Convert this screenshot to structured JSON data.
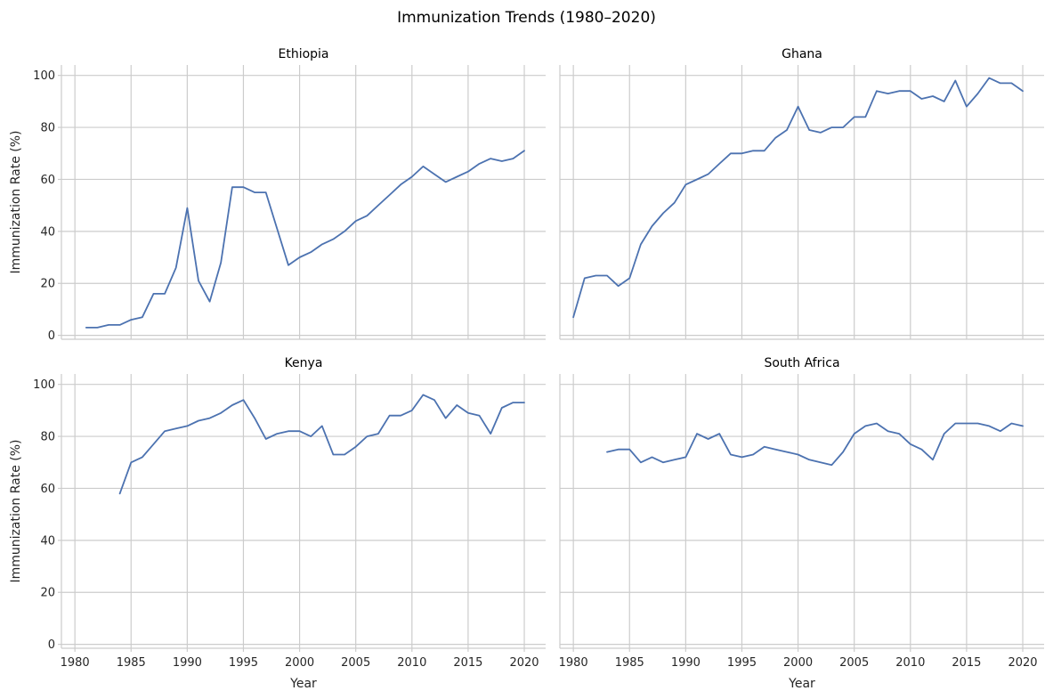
{
  "chart_data": {
    "type": "line",
    "title": "Immunization Trends (1980–2020)",
    "xlabel": "Year",
    "ylabel": "Immunization Rate (%)",
    "xlim": [
      1978.8,
      2021.9
    ],
    "ylim": [
      -1.5,
      104
    ],
    "x_ticks": [
      1980,
      1985,
      1990,
      1995,
      2000,
      2005,
      2010,
      2015,
      2020
    ],
    "y_ticks": [
      0,
      20,
      40,
      60,
      80,
      100
    ],
    "grid": true,
    "line_color": "#4c72b0",
    "grid_color": "#cccccc",
    "panels": [
      {
        "title": "Ethiopia",
        "x": [
          1981,
          1982,
          1983,
          1984,
          1985,
          1986,
          1987,
          1988,
          1989,
          1990,
          1991,
          1992,
          1993,
          1994,
          1995,
          1996,
          1997,
          1998,
          1999,
          2000,
          2001,
          2002,
          2003,
          2004,
          2005,
          2006,
          2007,
          2008,
          2009,
          2010,
          2011,
          2012,
          2013,
          2014,
          2015,
          2016,
          2017,
          2018,
          2019,
          2020
        ],
        "y": [
          3,
          3,
          4,
          4,
          6,
          7,
          16,
          16,
          26,
          49,
          21,
          13,
          28,
          57,
          57,
          55,
          55,
          41,
          27,
          30,
          32,
          35,
          37,
          40,
          44,
          46,
          50,
          54,
          58,
          61,
          65,
          62,
          59,
          61,
          63,
          66,
          68,
          67,
          68,
          71
        ]
      },
      {
        "title": "Ghana",
        "x": [
          1980,
          1981,
          1982,
          1983,
          1984,
          1985,
          1986,
          1987,
          1988,
          1989,
          1990,
          1991,
          1992,
          1993,
          1994,
          1995,
          1996,
          1997,
          1998,
          1999,
          2000,
          2001,
          2002,
          2003,
          2004,
          2005,
          2006,
          2007,
          2008,
          2009,
          2010,
          2011,
          2012,
          2013,
          2014,
          2015,
          2016,
          2017,
          2018,
          2019,
          2020
        ],
        "y": [
          7,
          22,
          23,
          23,
          19,
          22,
          35,
          42,
          47,
          51,
          58,
          60,
          62,
          66,
          70,
          70,
          71,
          71,
          76,
          79,
          88,
          79,
          78,
          80,
          80,
          84,
          84,
          94,
          93,
          94,
          94,
          91,
          92,
          90,
          98,
          88,
          93,
          99,
          97,
          97,
          94
        ]
      },
      {
        "title": "Kenya",
        "x": [
          1984,
          1985,
          1986,
          1987,
          1988,
          1989,
          1990,
          1991,
          1992,
          1993,
          1994,
          1995,
          1996,
          1997,
          1998,
          1999,
          2000,
          2001,
          2002,
          2003,
          2004,
          2005,
          2006,
          2007,
          2008,
          2009,
          2010,
          2011,
          2012,
          2013,
          2014,
          2015,
          2016,
          2017,
          2018,
          2019,
          2020
        ],
        "y": [
          58,
          70,
          72,
          77,
          82,
          83,
          84,
          86,
          87,
          89,
          92,
          94,
          87,
          79,
          81,
          82,
          82,
          80,
          84,
          73,
          73,
          76,
          80,
          81,
          88,
          88,
          90,
          96,
          94,
          87,
          92,
          89,
          88,
          81,
          91,
          93,
          93
        ]
      },
      {
        "title": "South Africa",
        "x": [
          1983,
          1984,
          1985,
          1986,
          1987,
          1988,
          1989,
          1990,
          1991,
          1992,
          1993,
          1994,
          1995,
          1996,
          1997,
          1998,
          1999,
          2000,
          2001,
          2002,
          2003,
          2004,
          2005,
          2006,
          2007,
          2008,
          2009,
          2010,
          2011,
          2012,
          2013,
          2014,
          2015,
          2016,
          2017,
          2018,
          2019,
          2020
        ],
        "y": [
          74,
          75,
          75,
          70,
          72,
          70,
          71,
          72,
          81,
          79,
          81,
          73,
          72,
          73,
          76,
          75,
          74,
          73,
          71,
          70,
          69,
          74,
          81,
          84,
          85,
          82,
          81,
          77,
          75,
          71,
          81,
          85,
          85,
          85,
          84,
          82,
          85,
          84
        ]
      }
    ]
  }
}
